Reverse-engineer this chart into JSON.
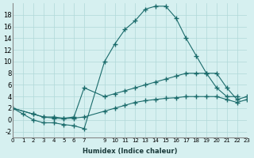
{
  "xlabel": "Humidex (Indice chaleur)",
  "background_color": "#d6f0f0",
  "grid_color": "#b0d8d8",
  "line_color": "#1a6b6b",
  "xlim": [
    0,
    23
  ],
  "ylim": [
    -3,
    20
  ],
  "xticks": [
    0,
    1,
    2,
    3,
    4,
    5,
    6,
    7,
    9,
    10,
    11,
    12,
    13,
    14,
    15,
    16,
    17,
    18,
    19,
    20,
    21,
    22,
    23
  ],
  "yticks": [
    -2,
    0,
    2,
    4,
    6,
    8,
    10,
    12,
    14,
    16,
    18
  ],
  "series1_x": [
    0,
    1,
    2,
    3,
    4,
    5,
    6,
    7,
    9,
    10,
    11,
    12,
    13,
    14,
    15,
    16,
    17,
    18,
    19,
    20,
    21,
    22
  ],
  "series1_y": [
    2,
    1,
    0,
    -0.5,
    -0.5,
    -0.8,
    -1,
    -1.5,
    10,
    13,
    15.5,
    17,
    19,
    19.5,
    19.5,
    17.5,
    14,
    11,
    8,
    5.5,
    4,
    4
  ],
  "series2_x": [
    0,
    2,
    3,
    4,
    5,
    6,
    7,
    9,
    10,
    11,
    12,
    13,
    14,
    15,
    16,
    17,
    18,
    19,
    20,
    21,
    22,
    23
  ],
  "series2_y": [
    2,
    1,
    0.5,
    0.5,
    0.3,
    0.5,
    5.5,
    4,
    4.5,
    5,
    5.5,
    6,
    6.5,
    7,
    7.5,
    8,
    8,
    8,
    8,
    5.5,
    3.5,
    4
  ],
  "series3_x": [
    0,
    2,
    3,
    4,
    5,
    6,
    7,
    9,
    10,
    11,
    12,
    13,
    14,
    15,
    16,
    17,
    18,
    19,
    20,
    21,
    22,
    23
  ],
  "series3_y": [
    2,
    1,
    0.5,
    0.3,
    0.2,
    0.3,
    0.5,
    1.5,
    2,
    2.5,
    3,
    3.3,
    3.5,
    3.7,
    3.8,
    4,
    4,
    4,
    4,
    3.5,
    3,
    3.5
  ]
}
